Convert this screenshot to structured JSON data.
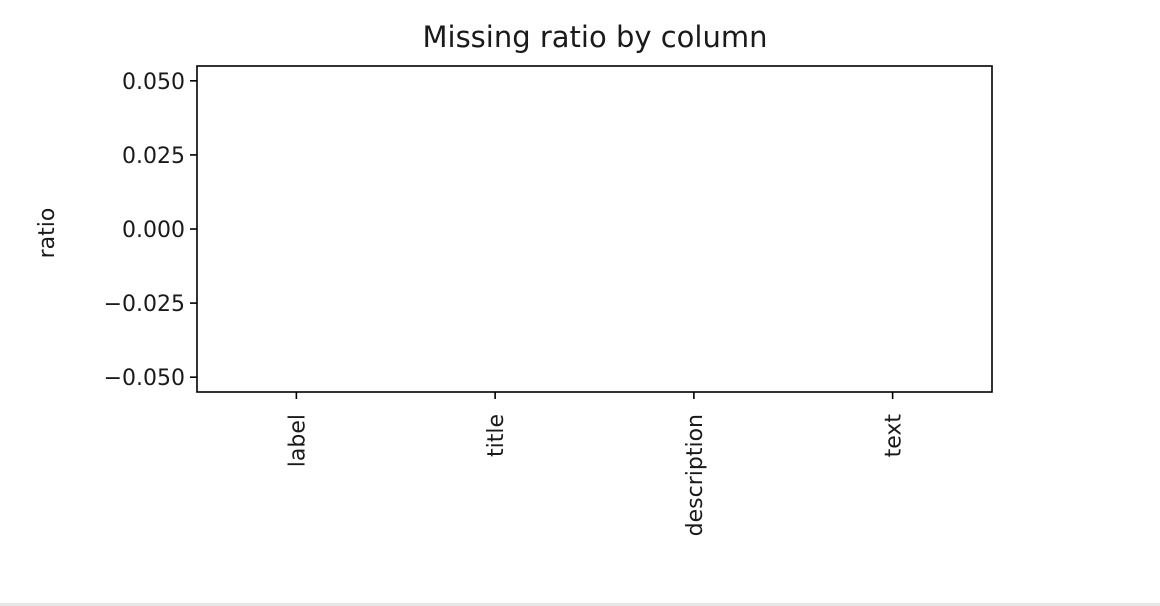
{
  "chart_data": {
    "type": "bar",
    "title": "Missing ratio by column",
    "xlabel": "",
    "ylabel": "ratio",
    "categories": [
      "label",
      "title",
      "description",
      "text"
    ],
    "values": [
      0,
      0,
      0,
      0
    ],
    "ylim": [
      -0.055,
      0.055
    ],
    "yticks": [
      0.05,
      0.025,
      0.0,
      -0.025,
      -0.05
    ],
    "ytick_labels": [
      "0.050",
      "0.025",
      "0.000",
      "−0.025",
      "−0.050"
    ],
    "xtick_rotation": "vertical",
    "grid": false,
    "legend": "none",
    "colors": {
      "bar": "#1f77b4",
      "axis": "#000000",
      "text": "#1a1a1a"
    }
  }
}
